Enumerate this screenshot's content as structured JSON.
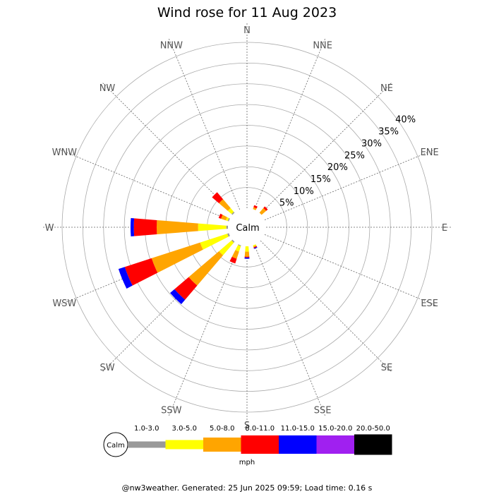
{
  "chart_data": {
    "type": "wind-rose",
    "title": "Wind rose for 11 Aug 2023",
    "directions": [
      "N",
      "NNE",
      "NE",
      "ENE",
      "E",
      "ESE",
      "SE",
      "SSE",
      "S",
      "SSW",
      "SW",
      "WSW",
      "W",
      "WNW",
      "NW",
      "NNW"
    ],
    "ring_labels": [
      "5%",
      "10%",
      "15%",
      "20%",
      "25%",
      "30%",
      "35%",
      "40%"
    ],
    "ring_values": [
      5,
      10,
      15,
      20,
      25,
      30,
      35,
      40
    ],
    "radial_max": 40,
    "calm_label": "Calm",
    "speed_unit": "mph",
    "speed_bins": [
      {
        "label": "1.0-3.0",
        "color": "#999999"
      },
      {
        "label": "3.0-5.0",
        "color": "#ffff00"
      },
      {
        "label": "5.0-8.0",
        "color": "#ffa500"
      },
      {
        "label": "8.0-11.0",
        "color": "#ff0000"
      },
      {
        "label": "11.0-15.0",
        "color": "#0000ff"
      },
      {
        "label": "15.0-20.0",
        "color": "#a020f0"
      },
      {
        "label": "20.0-50.0",
        "color": "#000000"
      }
    ],
    "series": [
      {
        "direction": "NNE",
        "values": [
          0,
          0,
          0.5,
          0.5,
          0,
          0,
          0
        ]
      },
      {
        "direction": "NE",
        "values": [
          0,
          0,
          1.5,
          0.5,
          0,
          0,
          0
        ]
      },
      {
        "direction": "NW",
        "values": [
          0.3,
          1.2,
          2.8,
          2.2,
          0,
          0,
          0
        ]
      },
      {
        "direction": "WNW",
        "values": [
          0.3,
          0.5,
          1.2,
          0.6,
          0,
          0,
          0
        ]
      },
      {
        "direction": "W",
        "values": [
          0.4,
          6.8,
          10.0,
          5.5,
          0.8,
          0,
          0
        ]
      },
      {
        "direction": "WSW",
        "values": [
          0.4,
          6.9,
          12.3,
          6.8,
          1.6,
          0,
          0
        ]
      },
      {
        "direction": "SW",
        "values": [
          0.3,
          4.0,
          9.6,
          4.5,
          1.4,
          0,
          0
        ]
      },
      {
        "direction": "SSW",
        "values": [
          0.2,
          1.4,
          1.8,
          1.2,
          0,
          0,
          0
        ]
      },
      {
        "direction": "S",
        "values": [
          0,
          1.3,
          1.2,
          0.2,
          0.3,
          0,
          0
        ]
      },
      {
        "direction": "SSE",
        "values": [
          0,
          0.3,
          0.2,
          0.2,
          0.2,
          0,
          0
        ]
      }
    ]
  },
  "footer": "@nw3weather. Generated: 25 Jun 2025 09:59; Load time: 0.16 s"
}
